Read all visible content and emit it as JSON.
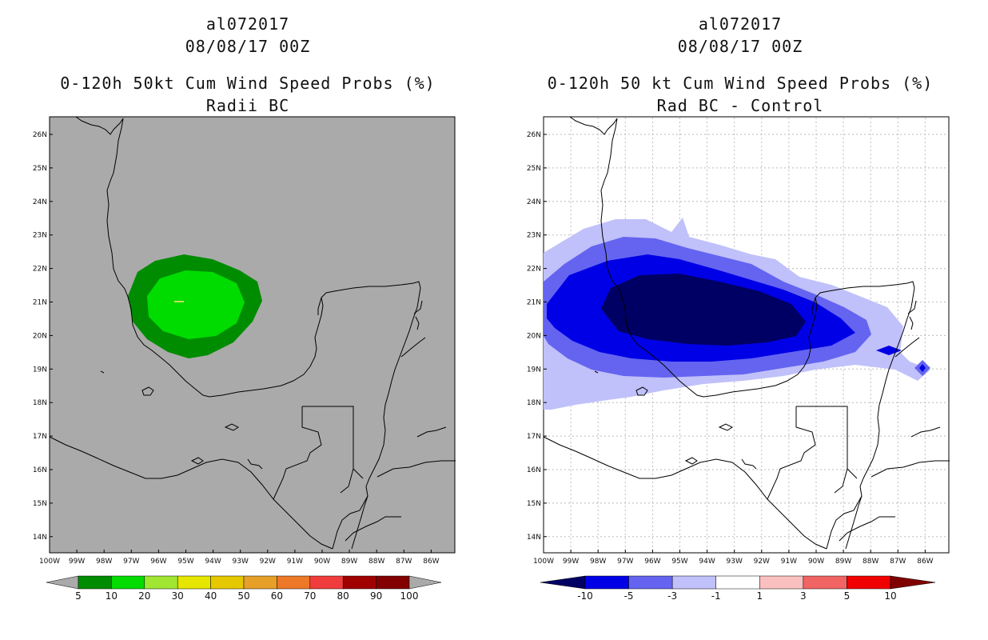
{
  "left": {
    "storm_id": "al072017",
    "date": "08/08/17 00Z",
    "title": "0-120h 50kt Cum Wind Speed Probs (%)",
    "subtitle": "Radii BC",
    "colorbar": {
      "labels": [
        "5",
        "10",
        "20",
        "30",
        "40",
        "50",
        "60",
        "70",
        "80",
        "90",
        "100"
      ],
      "colors": [
        "#008c00",
        "#00dc00",
        "#a0e632",
        "#e6e600",
        "#e6c800",
        "#e6a028",
        "#ec7828",
        "#f03c3c",
        "#a00000",
        "#820000",
        "#9600dc"
      ]
    }
  },
  "right": {
    "storm_id": "al072017",
    "date": "08/08/17 00Z",
    "title": "0-120h 50 kt Cum Wind Speed Probs (%)",
    "subtitle": "Rad BC - Control",
    "colorbar": {
      "labels": [
        "-10",
        "-5",
        "-3",
        "-1",
        "1",
        "3",
        "5",
        "10"
      ],
      "colors": [
        "#000064",
        "#0000e6",
        "#6464f0",
        "#c0c0fa",
        "#ffffff",
        "#fac0c0",
        "#f06464",
        "#f00000",
        "#800000"
      ]
    }
  },
  "axes": {
    "lat_labels": [
      "26N",
      "25N",
      "24N",
      "23N",
      "22N",
      "21N",
      "20N",
      "19N",
      "18N",
      "17N",
      "16N",
      "15N",
      "14N"
    ],
    "lon_labels": [
      "100W",
      "99W",
      "98W",
      "97W",
      "96W",
      "95W",
      "94W",
      "93W",
      "92W",
      "91W",
      "90W",
      "89W",
      "88W",
      "87W",
      "86W"
    ]
  },
  "colors": {
    "land_sea_bg_left": "#aaaaaa",
    "prob_10": "#00dc00",
    "prob_5": "#008c00"
  }
}
